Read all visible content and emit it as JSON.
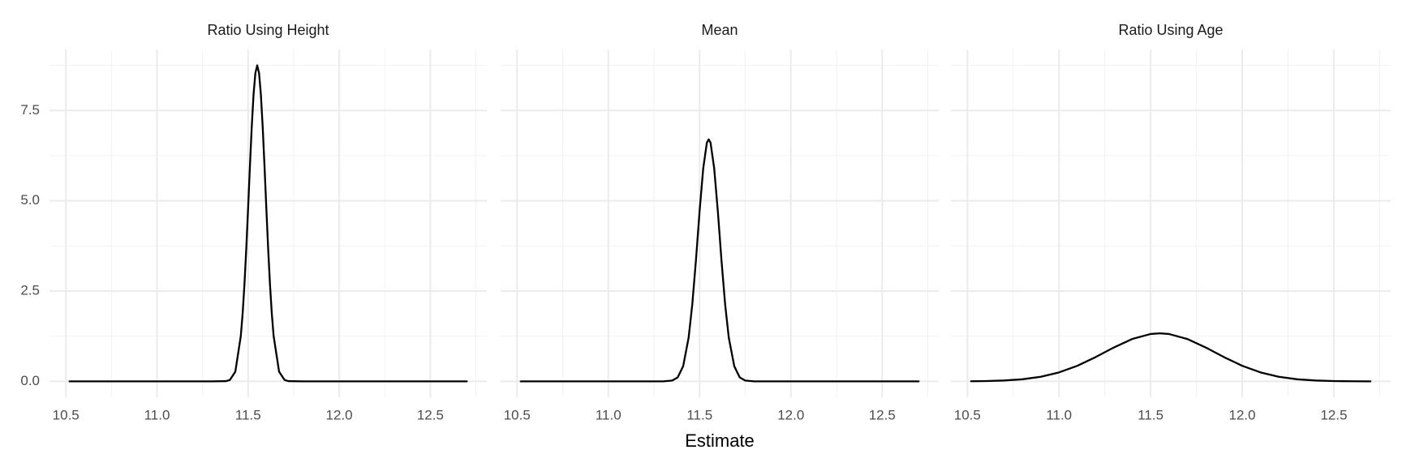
{
  "x_label": "Estimate",
  "chart_data": [
    {
      "type": "line",
      "title": "Ratio Using Height",
      "color": "#000000",
      "grid": true,
      "y_tick_labels": true,
      "x": [
        10.52,
        11.0,
        11.3,
        11.38,
        11.4,
        11.43,
        11.46,
        11.47,
        11.48,
        11.49,
        11.5,
        11.51,
        11.52,
        11.53,
        11.54,
        11.55,
        11.56,
        11.57,
        11.58,
        11.59,
        11.6,
        11.61,
        11.62,
        11.63,
        11.64,
        11.67,
        11.7,
        11.72,
        11.8,
        12.2,
        12.7
      ],
      "values": [
        0,
        0,
        0,
        0.008,
        0.039,
        0.27,
        1.26,
        1.88,
        2.69,
        3.68,
        4.8,
        5.96,
        7.05,
        7.95,
        8.54,
        8.75,
        8.54,
        7.95,
        7.05,
        5.96,
        4.8,
        3.68,
        2.69,
        1.88,
        1.26,
        0.27,
        0.039,
        0.008,
        0,
        0,
        0
      ],
      "xlim": [
        10.41,
        12.81
      ],
      "ylim": [
        -0.44,
        9.19
      ],
      "xticks": [
        10.5,
        {
          "value": 11,
          "label": "11.0"
        },
        11.5,
        {
          "value": 12,
          "label": "12.0"
        },
        12.5
      ],
      "yticks": [
        {
          "value": 0,
          "label": "0.0"
        },
        2.5,
        {
          "value": 5,
          "label": "5.0"
        },
        7.5
      ],
      "minor_xticks": [
        10.75,
        11.25,
        11.75,
        12.25,
        12.75
      ],
      "minor_yticks": [
        1.25,
        3.75,
        6.25,
        8.75
      ]
    },
    {
      "type": "line",
      "title": "Mean",
      "color": "#000000",
      "grid": true,
      "y_tick_labels": false,
      "x": [
        10.52,
        11.0,
        11.3,
        11.35,
        11.38,
        11.41,
        11.44,
        11.46,
        11.48,
        11.5,
        11.52,
        11.54,
        11.55,
        11.56,
        11.58,
        11.6,
        11.62,
        11.64,
        11.66,
        11.69,
        11.72,
        11.75,
        11.8,
        12.2,
        12.7
      ],
      "values": [
        0,
        0,
        0,
        0.023,
        0.11,
        0.42,
        1.21,
        2.13,
        3.35,
        4.71,
        5.9,
        6.61,
        6.7,
        6.61,
        5.9,
        4.71,
        3.35,
        2.13,
        1.21,
        0.42,
        0.11,
        0.023,
        0,
        0,
        0
      ],
      "xlim": [
        10.41,
        12.81
      ],
      "ylim": [
        -0.44,
        9.19
      ],
      "xticks": [
        10.5,
        {
          "value": 11,
          "label": "11.0"
        },
        11.5,
        {
          "value": 12,
          "label": "12.0"
        },
        12.5
      ],
      "yticks": [
        0,
        2.5,
        5,
        7.5
      ],
      "minor_xticks": [
        10.75,
        11.25,
        11.75,
        12.25,
        12.75
      ],
      "minor_yticks": [
        1.25,
        3.75,
        6.25,
        8.75
      ]
    },
    {
      "type": "line",
      "title": "Ratio Using Age",
      "color": "#000000",
      "grid": true,
      "y_tick_labels": false,
      "x": [
        10.52,
        10.6,
        10.7,
        10.8,
        10.9,
        11.0,
        11.1,
        11.2,
        11.3,
        11.4,
        11.5,
        11.55,
        11.6,
        11.7,
        11.8,
        11.9,
        12.0,
        12.1,
        12.2,
        12.3,
        12.4,
        12.5,
        12.6,
        12.7
      ],
      "values": [
        0.004,
        0.009,
        0.024,
        0.058,
        0.127,
        0.248,
        0.432,
        0.673,
        0.94,
        1.174,
        1.312,
        1.33,
        1.312,
        1.174,
        0.94,
        0.673,
        0.432,
        0.248,
        0.127,
        0.058,
        0.024,
        0.009,
        0.003,
        0.001
      ],
      "xlim": [
        10.41,
        12.81
      ],
      "ylim": [
        -0.44,
        9.19
      ],
      "xticks": [
        10.5,
        {
          "value": 11,
          "label": "11.0"
        },
        11.5,
        {
          "value": 12,
          "label": "12.0"
        },
        12.5
      ],
      "yticks": [
        0,
        2.5,
        5,
        7.5
      ],
      "minor_xticks": [
        10.75,
        11.25,
        11.75,
        12.25,
        12.75
      ],
      "minor_yticks": [
        1.25,
        3.75,
        6.25,
        8.75
      ]
    }
  ]
}
